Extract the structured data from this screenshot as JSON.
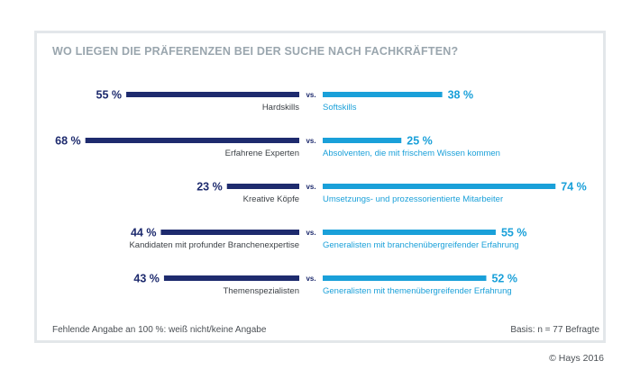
{
  "title": "WO LIEGEN DIE PRÄFERENZEN BEI DER SUCHE NACH FACHKRÄFTEN?",
  "footnote": "Fehlende Angabe an 100 %: weiß nicht/keine Angabe",
  "basis": "Basis: n = 77 Befragte",
  "copyright": "© Hays 2016",
  "colors": {
    "left": "#1e2b6e",
    "right": "#1aa0d9",
    "frame": "#e3e7ea",
    "title": "#9aa6ae"
  },
  "chart_data": {
    "type": "bar",
    "vs_label": "vs.",
    "value_scale_max": 100,
    "rows": [
      {
        "left_label": "Hardskills",
        "left_value": 55,
        "left_text": "55 %",
        "right_label": "Softskills",
        "right_value": 38,
        "right_text": "38 %"
      },
      {
        "left_label": "Erfahrene Experten",
        "left_value": 68,
        "left_text": "68 %",
        "right_label": "Absolventen, die mit frischem Wissen kommen",
        "right_value": 25,
        "right_text": "25 %"
      },
      {
        "left_label": "Kreative Köpfe",
        "left_value": 23,
        "left_text": "23 %",
        "right_label": "Umsetzungs- und prozessorientierte Mitarbeiter",
        "right_value": 74,
        "right_text": "74 %"
      },
      {
        "left_label": "Kandidaten mit profunder Branchenexpertise",
        "left_value": 44,
        "left_text": "44 %",
        "right_label": "Generalisten mit branchenübergreifender Erfahrung",
        "right_value": 55,
        "right_text": "55 %"
      },
      {
        "left_label": "Themenspezialisten",
        "left_value": 43,
        "left_text": "43 %",
        "right_label": "Generalisten mit themenübergreifender Erfahrung",
        "right_value": 52,
        "right_text": "52 %"
      }
    ]
  }
}
